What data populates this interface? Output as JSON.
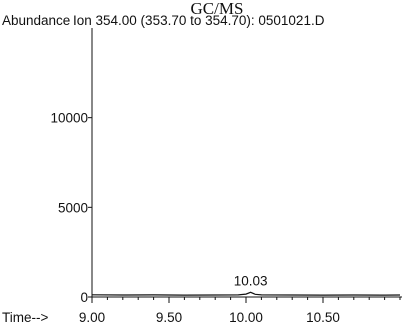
{
  "chart_data": {
    "type": "line",
    "title": "GC/MS",
    "ylabel": "Abundance",
    "subtitle": "Ion 354.00 (353.70 to 354.70): 0501021.D",
    "xlabel": "Time-->",
    "xlim": [
      9.0,
      11.0
    ],
    "ylim": [
      0,
      15000
    ],
    "x_ticks": [
      9.0,
      9.5,
      10.0,
      10.5
    ],
    "x_tick_labels": [
      "9.00",
      "9.50",
      "10.00",
      "10.50"
    ],
    "x_minor_step": 0.1,
    "y_ticks": [
      0,
      5000,
      10000
    ],
    "y_tick_labels": [
      "0",
      "5000",
      "10000"
    ],
    "grid": false,
    "series": [
      {
        "x": [
          9.0,
          9.2,
          9.4,
          9.6,
          9.8,
          9.95,
          10.0,
          10.03,
          10.06,
          10.1,
          10.3,
          10.5,
          10.7,
          10.9,
          11.0
        ],
        "y": [
          120,
          110,
          115,
          105,
          110,
          115,
          160,
          260,
          150,
          115,
          110,
          105,
          110,
          108,
          112
        ]
      }
    ],
    "annotations": [
      {
        "label": "10.03",
        "x": 10.03,
        "y": 260
      }
    ]
  }
}
